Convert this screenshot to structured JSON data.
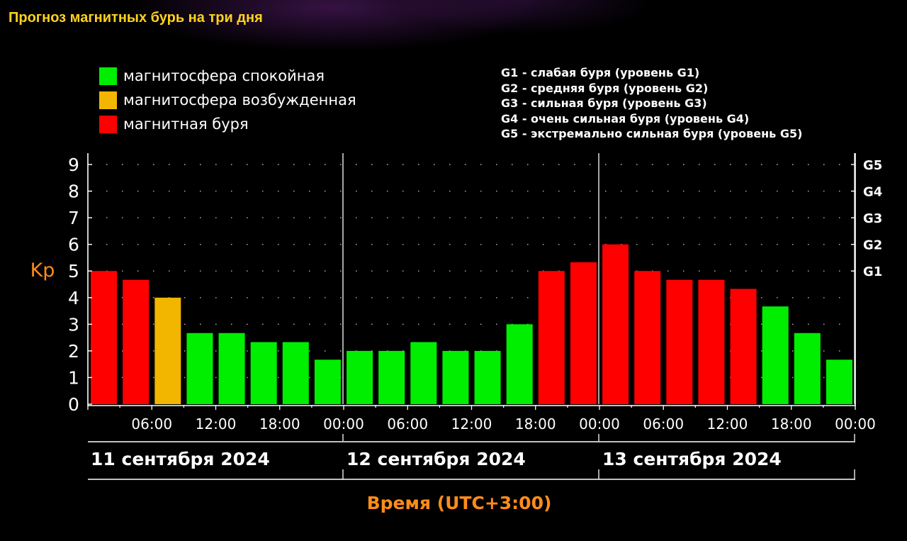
{
  "page": {
    "title": "Прогноз магнитных бурь на три дня"
  },
  "legend": [
    {
      "label": "магнитосфера спокойная",
      "color": "#00ee00"
    },
    {
      "label": "магнитосфера возбужденная",
      "color": "#f2b600"
    },
    {
      "label": "магнитная буря",
      "color": "#ff0000"
    }
  ],
  "storm_levels": [
    "G1 - слабая буря (уровень G1)",
    "G2 - средняя буря (уровень G2)",
    "G3 - сильная буря (уровень G3)",
    "G4 - очень сильная буря (уровень G4)",
    "G5 - экстремально сильная буря (уровень G5)"
  ],
  "chart_data": {
    "type": "bar",
    "ylabel": "Kp",
    "xlabel": "Время (UTC+3:00)",
    "ylim": [
      0,
      9
    ],
    "y_ticks": [
      "0",
      "1",
      "2",
      "3",
      "4",
      "5",
      "6",
      "7",
      "8",
      "9"
    ],
    "right_axis_labels": [
      {
        "label": "G1",
        "kp": 5
      },
      {
        "label": "G2",
        "kp": 6
      },
      {
        "label": "G3",
        "kp": 7
      },
      {
        "label": "G4",
        "kp": 8
      },
      {
        "label": "G5",
        "kp": 9
      }
    ],
    "x_tick_labels": [
      "06:00",
      "12:00",
      "18:00",
      "00:00",
      "06:00",
      "12:00",
      "18:00",
      "00:00",
      "06:00",
      "12:00",
      "18:00",
      "00:00"
    ],
    "days": [
      "11 сентября 2024",
      "12 сентября 2024",
      "13 сентября 2024"
    ],
    "grid": true,
    "values": [
      5.0,
      4.67,
      4.0,
      2.67,
      2.67,
      2.33,
      2.33,
      1.67,
      2.0,
      2.0,
      2.33,
      2.0,
      2.0,
      3.0,
      5.0,
      5.33,
      6.0,
      5.0,
      4.67,
      4.67,
      4.33,
      3.67,
      2.67,
      1.67
    ],
    "status": [
      "storm",
      "storm",
      "active",
      "quiet",
      "quiet",
      "quiet",
      "quiet",
      "quiet",
      "quiet",
      "quiet",
      "quiet",
      "quiet",
      "quiet",
      "quiet",
      "storm",
      "storm",
      "storm",
      "storm",
      "storm",
      "storm",
      "storm",
      "quiet",
      "quiet",
      "quiet"
    ],
    "colors": {
      "quiet": "#00ee00",
      "active": "#f2b600",
      "storm": "#ff0000",
      "axis_label": "#ff8c1a",
      "text": "#ffffff"
    }
  }
}
